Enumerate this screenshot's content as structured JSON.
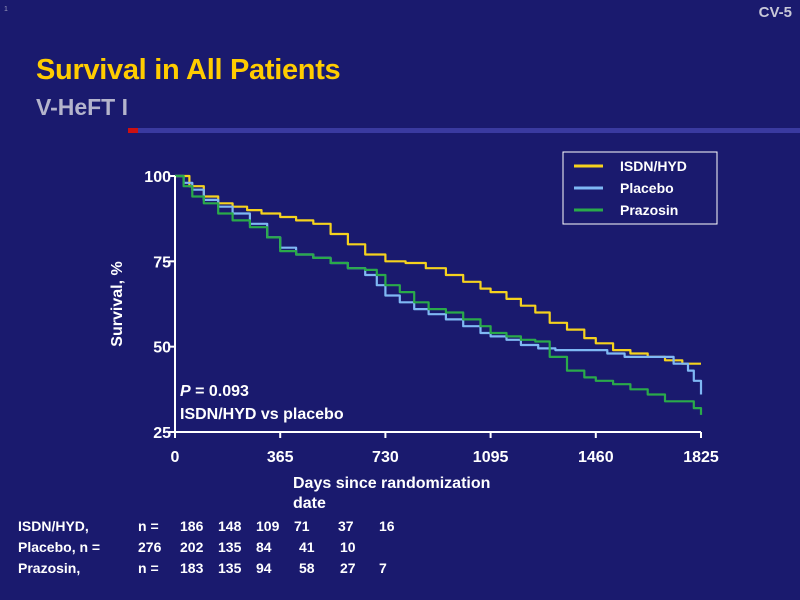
{
  "slide": {
    "number": "CV-5",
    "corner_mark": "1"
  },
  "title": "Survival in All Patients",
  "subtitle": "V-HeFT I",
  "annotation": {
    "p_value": "P = 0.093",
    "comparison": "ISDN/HYD vs placebo"
  },
  "colors": {
    "ISDN/HYD": "#f5d21e",
    "Placebo": "#7fb8f4",
    "Prazosin": "#2aaa4a"
  },
  "chart_data": {
    "type": "line",
    "title": "Survival in All Patients",
    "xlabel": "Days since randomization date",
    "ylabel": "Survival, %",
    "xlim": [
      0,
      1825
    ],
    "ylim": [
      25,
      100
    ],
    "xticks": [
      0,
      365,
      730,
      1095,
      1460,
      1825
    ],
    "yticks": [
      25,
      50,
      75,
      100
    ],
    "legend_position": "top-right",
    "series": [
      {
        "name": "ISDN/HYD",
        "x": [
          0,
          50,
          100,
          150,
          200,
          250,
          300,
          365,
          420,
          480,
          540,
          600,
          660,
          730,
          800,
          870,
          940,
          1000,
          1060,
          1095,
          1150,
          1200,
          1250,
          1300,
          1360,
          1420,
          1460,
          1520,
          1580,
          1640,
          1700,
          1760,
          1825
        ],
        "y": [
          100,
          97,
          94,
          92,
          91,
          90,
          89,
          88,
          87,
          86,
          83,
          80,
          77,
          75,
          74.5,
          73,
          71,
          69,
          67,
          66,
          64,
          62,
          60,
          57,
          55,
          52.5,
          51,
          49,
          48,
          47,
          46,
          45,
          45
        ]
      },
      {
        "name": "Placebo",
        "x": [
          0,
          30,
          60,
          100,
          150,
          200,
          260,
          320,
          365,
          420,
          480,
          540,
          600,
          660,
          700,
          730,
          780,
          830,
          880,
          940,
          1000,
          1060,
          1095,
          1150,
          1200,
          1260,
          1320,
          1380,
          1440,
          1500,
          1560,
          1620,
          1680,
          1730,
          1780,
          1800,
          1825
        ],
        "y": [
          100,
          98,
          96,
          93,
          91,
          89,
          86,
          82,
          79,
          77,
          76,
          74.5,
          73,
          71,
          68,
          65,
          63,
          61,
          59.5,
          58,
          56,
          54,
          53,
          52,
          50.5,
          49.5,
          49,
          49,
          49,
          48,
          47,
          47,
          47,
          45,
          43,
          40,
          36
        ]
      },
      {
        "name": "Prazosin",
        "x": [
          0,
          30,
          60,
          100,
          150,
          200,
          260,
          320,
          365,
          420,
          480,
          540,
          600,
          660,
          700,
          730,
          780,
          830,
          880,
          940,
          1000,
          1060,
          1095,
          1150,
          1200,
          1250,
          1300,
          1360,
          1420,
          1460,
          1520,
          1580,
          1640,
          1700,
          1760,
          1800,
          1825
        ],
        "y": [
          100,
          97,
          94,
          92,
          89,
          87,
          85,
          82,
          78,
          77,
          76,
          74.5,
          73,
          72.5,
          71,
          68,
          66,
          63,
          61,
          60,
          58,
          56,
          54,
          53,
          52,
          51.5,
          47,
          43,
          41,
          40,
          39,
          37.5,
          36,
          34,
          34,
          32,
          30
        ]
      }
    ]
  },
  "numbers_at_risk": {
    "rows": [
      {
        "group": "ISDN/HYD,",
        "n_label": "n =",
        "counts": [
          "186",
          "148",
          "109",
          "71",
          "37",
          "16"
        ]
      },
      {
        "group": "Placebo, n =",
        "n_label": "",
        "counts": [
          "276",
          "202",
          "135",
          "84",
          "41",
          "10"
        ]
      },
      {
        "group": "Prazosin,",
        "n_label": "n =",
        "counts": [
          "183",
          "135",
          "94",
          "58",
          "27",
          "7"
        ]
      }
    ]
  }
}
